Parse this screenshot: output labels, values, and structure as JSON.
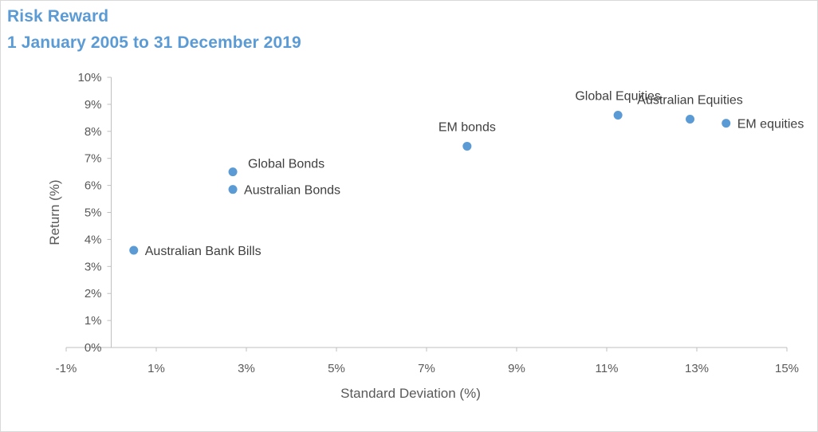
{
  "chart_data": {
    "type": "scatter",
    "title": "Risk Reward",
    "subtitle": "1 January 2005 to 31 December 2019",
    "xlabel": "Standard Deviation (%)",
    "ylabel": "Return (%)",
    "xlim": [
      -1,
      15
    ],
    "ylim": [
      0,
      10
    ],
    "x_ticks": [
      "-1%",
      "1%",
      "3%",
      "5%",
      "7%",
      "9%",
      "11%",
      "13%",
      "15%"
    ],
    "y_ticks": [
      "0%",
      "1%",
      "2%",
      "3%",
      "4%",
      "5%",
      "6%",
      "7%",
      "8%",
      "9%",
      "10%"
    ],
    "grid": false,
    "color": "#5b9bd5",
    "points": [
      {
        "label": "Australian Bank Bills",
        "x": 0.5,
        "y": 3.6,
        "label_pos": "right"
      },
      {
        "label": "Global Bonds",
        "x": 2.7,
        "y": 6.5,
        "label_pos": "upper-right"
      },
      {
        "label": "Australian Bonds",
        "x": 2.7,
        "y": 5.85,
        "label_pos": "right"
      },
      {
        "label": "EM bonds",
        "x": 7.9,
        "y": 7.45,
        "label_pos": "above"
      },
      {
        "label": "Global Equities",
        "x": 11.25,
        "y": 8.6,
        "label_pos": "above"
      },
      {
        "label": "Australian Equities",
        "x": 12.85,
        "y": 8.45,
        "label_pos": "above"
      },
      {
        "label": "EM equities",
        "x": 13.65,
        "y": 8.3,
        "label_pos": "right"
      }
    ]
  }
}
